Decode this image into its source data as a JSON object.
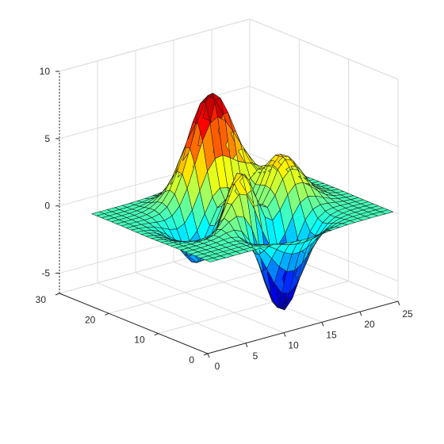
{
  "chart_data": {
    "type": "surface",
    "function": "peaks",
    "colormap": "jet",
    "grid_size": [
      25,
      25
    ],
    "x": {
      "ticks": [
        0,
        5,
        10,
        15,
        20,
        25
      ],
      "lim": [
        0,
        25
      ]
    },
    "y": {
      "ticks": [
        0,
        10,
        20,
        30
      ],
      "lim": [
        0,
        30
      ]
    },
    "z": {
      "ticks": [
        -5,
        0,
        5,
        10
      ],
      "lim": [
        -6.5,
        10
      ]
    },
    "grid": true,
    "view": "matlab-default-3d"
  }
}
